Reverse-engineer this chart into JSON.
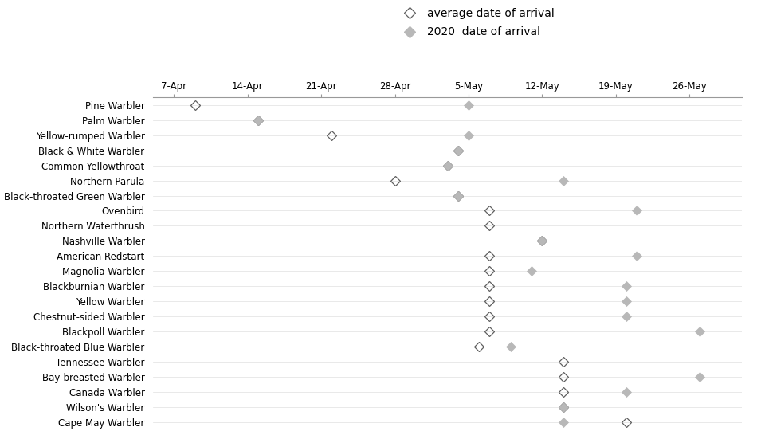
{
  "species": [
    "Pine Warbler",
    "Palm Warbler",
    "Yellow-rumped Warbler",
    "Black & White Warbler",
    "Common Yellowthroat",
    "Northern Parula",
    "Black-throated Green Warbler",
    "Ovenbird",
    "Northern Waterthrush",
    "Nashville Warbler",
    "American Redstart",
    "Magnolia Warbler",
    "Blackburnian Warbler",
    "Yellow Warbler",
    "Chestnut-sided Warbler",
    "Blackpoll Warbler",
    "Black-throated Blue Warbler",
    "Tennessee Warbler",
    "Bay-breasted Warbler",
    "Canada Warbler",
    "Wilson's Warbler",
    "Cape May Warbler"
  ],
  "avg_days_from_apr7": [
    2,
    8,
    15,
    27,
    26,
    21,
    27,
    30,
    30,
    35,
    30,
    30,
    30,
    30,
    30,
    30,
    29,
    37,
    37,
    37,
    37,
    43
  ],
  "yr2020_days_from_apr7": [
    28,
    8,
    28,
    27,
    26,
    37,
    27,
    44,
    null,
    35,
    44,
    34,
    43,
    43,
    43,
    50,
    32,
    null,
    50,
    43,
    37,
    37
  ],
  "avg_color": "#606060",
  "yr2020_color": "#b8b8b8",
  "background_color": "#ffffff",
  "grid_color": "#e0e0e0",
  "legend_avg_label": "average date of arrival",
  "legend_2020_label": "2020  date of arrival",
  "xtick_labels": [
    "7-Apr",
    "14-Apr",
    "21-Apr",
    "28-Apr",
    "5-May",
    "12-May",
    "19-May",
    "26-May"
  ],
  "xtick_days": [
    0,
    7,
    14,
    21,
    28,
    35,
    42,
    49
  ],
  "xlim": [
    -2,
    54
  ],
  "marker_size": 6,
  "legend_fontsize": 10,
  "tick_fontsize": 8.5,
  "species_fontsize": 8.5
}
